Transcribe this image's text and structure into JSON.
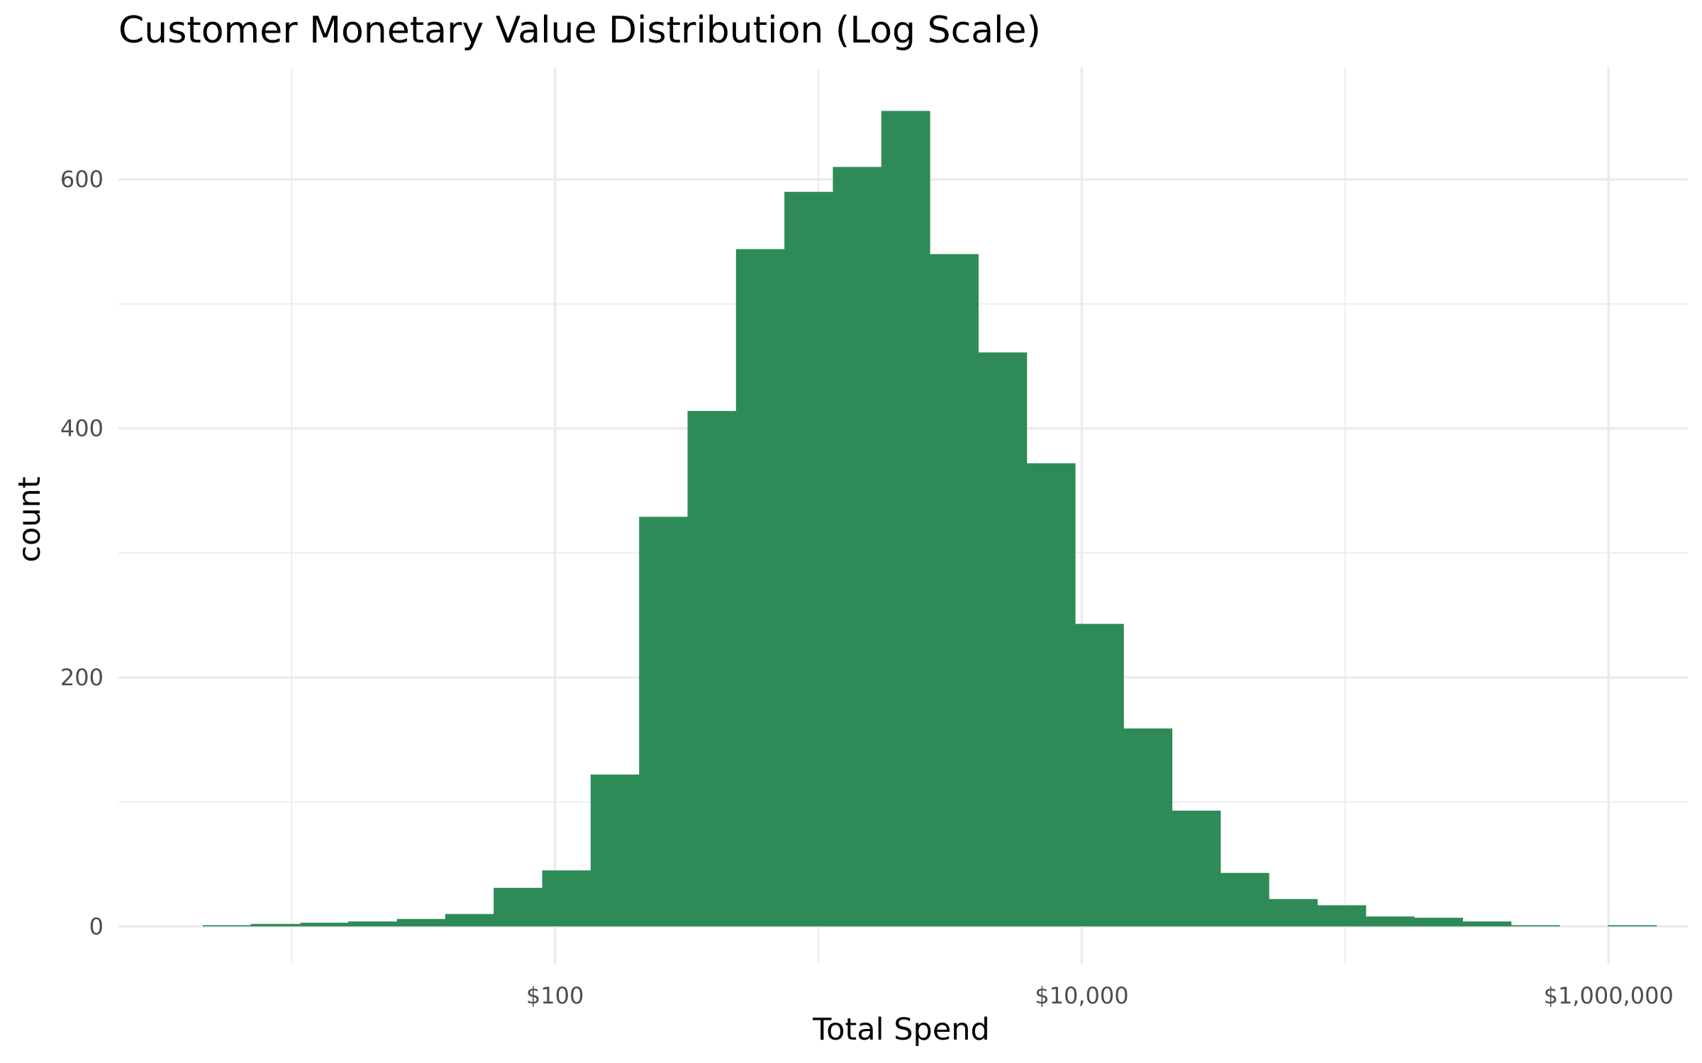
{
  "chart_data": {
    "type": "bar",
    "subtype": "histogram",
    "title": "Customer Monetary Value Distribution (Log Scale)",
    "xlabel": "Total Spend",
    "ylabel": "count",
    "x_scale": "log10",
    "xlim": [
      2.2,
      2000000
    ],
    "ylim": [
      -30,
      690
    ],
    "x_ticks": [
      {
        "value": 100,
        "label": "$100"
      },
      {
        "value": 10000,
        "label": "$10,000"
      },
      {
        "value": 1000000,
        "label": "$1,000,000"
      }
    ],
    "x_minor_ticks": [
      10,
      1000,
      100000
    ],
    "y_ticks": [
      {
        "value": 0,
        "label": "0"
      },
      {
        "value": 200,
        "label": "200"
      },
      {
        "value": 400,
        "label": "400"
      },
      {
        "value": 600,
        "label": "600"
      }
    ],
    "y_minor_ticks": [
      100,
      300,
      500
    ],
    "bar_color": "#2e8b57",
    "grid": true,
    "legend": "none",
    "bins": [
      {
        "x0": 4.6,
        "x1": 7.0,
        "count": 1
      },
      {
        "x0": 7.0,
        "x1": 10.8,
        "count": 2
      },
      {
        "x0": 10.8,
        "x1": 16.4,
        "count": 3
      },
      {
        "x0": 16.4,
        "x1": 25.1,
        "count": 4
      },
      {
        "x0": 25.1,
        "x1": 38.3,
        "count": 6
      },
      {
        "x0": 38.3,
        "x1": 58.5,
        "count": 10
      },
      {
        "x0": 58.5,
        "x1": 89.4,
        "count": 31
      },
      {
        "x0": 89.4,
        "x1": 136.6,
        "count": 45
      },
      {
        "x0": 136.6,
        "x1": 208.6,
        "count": 122
      },
      {
        "x0": 208.6,
        "x1": 318.6,
        "count": 329
      },
      {
        "x0": 318.6,
        "x1": 486.6,
        "count": 414
      },
      {
        "x0": 486.6,
        "x1": 743.0,
        "count": 544
      },
      {
        "x0": 743.0,
        "x1": 1134.9,
        "count": 590
      },
      {
        "x0": 1134.9,
        "x1": 1733.2,
        "count": 610
      },
      {
        "x0": 1733.2,
        "x1": 2647.1,
        "count": 655
      },
      {
        "x0": 2647.1,
        "x1": 4042.6,
        "count": 540
      },
      {
        "x0": 4042.6,
        "x1": 6174.4,
        "count": 461
      },
      {
        "x0": 6174.4,
        "x1": 9430.0,
        "count": 372
      },
      {
        "x0": 9430.0,
        "x1": 14401.0,
        "count": 243
      },
      {
        "x0": 14401.0,
        "x1": 21994.0,
        "count": 159
      },
      {
        "x0": 21994.0,
        "x1": 33589.0,
        "count": 93
      },
      {
        "x0": 33589.0,
        "x1": 51300.0,
        "count": 43
      },
      {
        "x0": 51300.0,
        "x1": 78349.0,
        "count": 22
      },
      {
        "x0": 78349.0,
        "x1": 119659.0,
        "count": 17
      },
      {
        "x0": 119659.0,
        "x1": 182750.0,
        "count": 8
      },
      {
        "x0": 182750.0,
        "x1": 279106.0,
        "count": 7
      },
      {
        "x0": 279106.0,
        "x1": 426268.0,
        "count": 4
      },
      {
        "x0": 426268.0,
        "x1": 651006.0,
        "count": 1
      },
      {
        "x0": 651006.0,
        "x1": 994283.0,
        "count": 0
      },
      {
        "x0": 994283.0,
        "x1": 1518556.0,
        "count": 1
      }
    ]
  }
}
